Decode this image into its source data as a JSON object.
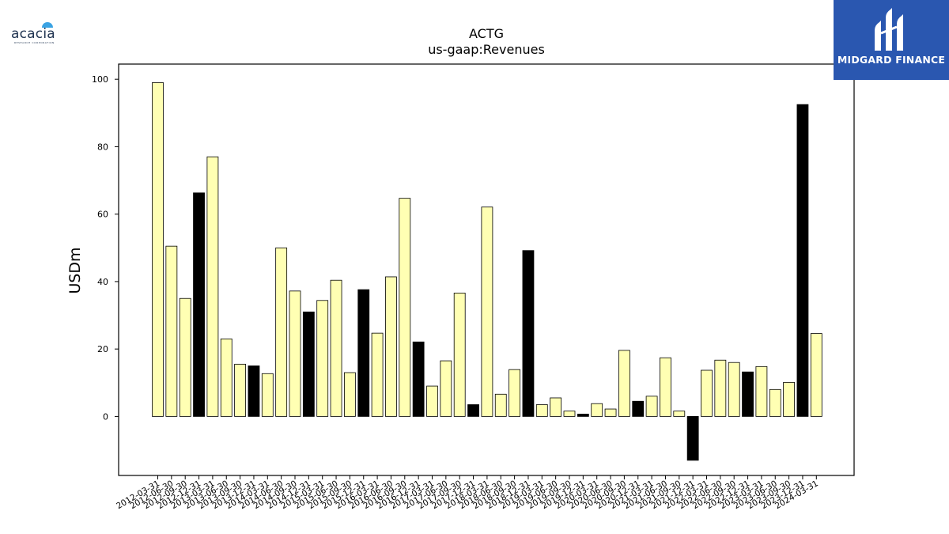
{
  "logos": {
    "left": {
      "text": "acacia",
      "subtext": "RESEARCH CORPORATION"
    },
    "right": {
      "text": "MIDGARD FINANCE",
      "background": "#2a57b0"
    }
  },
  "colors": {
    "bar_default": "#ffffb3",
    "bar_highlight": "#000000",
    "bar_edge": "#000000"
  },
  "chart_data": {
    "type": "bar",
    "title": "ACTG",
    "subtitle": "us-gaap:Revenues",
    "xlabel": "",
    "ylabel": "USDm",
    "ylim": [
      -17.5,
      104.5
    ],
    "yticks": [
      0,
      20,
      40,
      60,
      80,
      100
    ],
    "grid": false,
    "categories": [
      "2012-03-31",
      "2012-06-30",
      "2012-09-30",
      "2012-12-31",
      "2013-03-31",
      "2013-06-30",
      "2013-09-30",
      "2013-12-31",
      "2014-03-31",
      "2014-06-30",
      "2014-09-30",
      "2014-12-31",
      "2015-03-31",
      "2015-06-30",
      "2015-09-30",
      "2015-12-31",
      "2016-03-31",
      "2016-06-30",
      "2016-09-30",
      "2016-12-31",
      "2017-03-31",
      "2017-06-30",
      "2017-09-30",
      "2017-12-31",
      "2018-03-31",
      "2018-06-30",
      "2018-09-30",
      "2018-12-31",
      "2019-03-31",
      "2019-06-30",
      "2019-09-30",
      "2019-12-31",
      "2020-03-31",
      "2020-06-30",
      "2020-09-30",
      "2020-12-31",
      "2021-03-31",
      "2021-06-30",
      "2021-09-30",
      "2021-12-31",
      "2022-03-31",
      "2022-06-30",
      "2022-09-30",
      "2022-12-31",
      "2023-03-31",
      "2023-06-30",
      "2023-09-30",
      "2023-12-31",
      "2024-03-31"
    ],
    "values": [
      99.0,
      50.5,
      35.0,
      66.3,
      77.0,
      23.0,
      15.5,
      15.0,
      12.7,
      50.0,
      37.2,
      31.0,
      34.4,
      40.4,
      13.0,
      37.6,
      24.7,
      41.4,
      64.7,
      22.1,
      9.0,
      16.5,
      36.6,
      3.5,
      62.1,
      6.6,
      13.9,
      49.2,
      3.5,
      5.5,
      1.6,
      0.7,
      3.8,
      2.2,
      19.6,
      4.5,
      6.0,
      17.4,
      1.6,
      -13.0,
      13.7,
      16.7,
      16.0,
      13.2,
      14.8,
      8.0,
      10.1,
      92.5,
      24.6
    ],
    "highlight": [
      false,
      false,
      false,
      true,
      false,
      false,
      false,
      true,
      false,
      false,
      false,
      true,
      false,
      false,
      false,
      true,
      false,
      false,
      false,
      true,
      false,
      false,
      false,
      true,
      false,
      false,
      false,
      true,
      false,
      false,
      false,
      true,
      false,
      false,
      false,
      true,
      false,
      false,
      false,
      true,
      false,
      false,
      false,
      true,
      false,
      false,
      false,
      true,
      false
    ]
  }
}
